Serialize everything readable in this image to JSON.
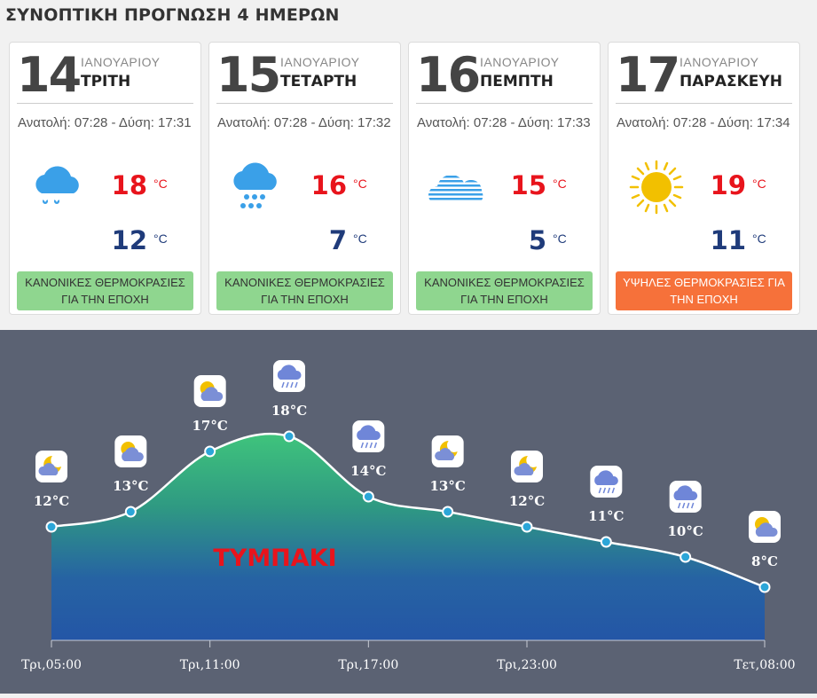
{
  "page_title": "ΣΥΝΟΠΤΙΚΗ ΠΡΟΓΝΩΣΗ 4 ΗΜΕΡΩΝ",
  "days": [
    {
      "day": "14",
      "month": "ΙΑΝΟΥΑΡΙΟΥ",
      "weekday": "ΤΡΙΤΗ",
      "sun": "Ανατολή: 07:28 - Δύση: 17:31",
      "icon": "rain-cloud-icon",
      "tmax": "18",
      "tmin": "12",
      "unit": "°C",
      "badge": "ΚΑΝΟΝΙΚΕΣ ΘΕΡΜΟΚΡΑΣΙΕΣ ΓΙΑ ΤΗΝ ΕΠΟΧΗ",
      "badge_type": "normal"
    },
    {
      "day": "15",
      "month": "ΙΑΝΟΥΑΡΙΟΥ",
      "weekday": "ΤΕΤΑΡΤΗ",
      "sun": "Ανατολή: 07:28 - Δύση: 17:32",
      "icon": "heavy-rain-cloud-icon",
      "tmax": "16",
      "tmin": "7",
      "unit": "°C",
      "badge": "ΚΑΝΟΝΙΚΕΣ ΘΕΡΜΟΚΡΑΣΙΕΣ ΓΙΑ ΤΗΝ ΕΠΟΧΗ",
      "badge_type": "normal"
    },
    {
      "day": "16",
      "month": "ΙΑΝΟΥΑΡΙΟΥ",
      "weekday": "ΠΕΜΠΤΗ",
      "sun": "Ανατολή: 07:28 - Δύση: 17:33",
      "icon": "fog-cloud-icon",
      "tmax": "15",
      "tmin": "5",
      "unit": "°C",
      "badge": "ΚΑΝΟΝΙΚΕΣ ΘΕΡΜΟΚΡΑΣΙΕΣ ΓΙΑ ΤΗΝ ΕΠΟΧΗ",
      "badge_type": "normal"
    },
    {
      "day": "17",
      "month": "ΙΑΝΟΥΑΡΙΟΥ",
      "weekday": "ΠΑΡΑΣΚΕΥΗ",
      "sun": "Ανατολή: 07:28 - Δύση: 17:34",
      "icon": "sun-icon",
      "tmax": "19",
      "tmin": "11",
      "unit": "°C",
      "badge": "ΥΨΗΛΕΣ ΘΕΡΜΟΚΡΑΣΙΕΣ ΓΙΑ ΤΗΝ ΕΠΟΧΗ",
      "badge_type": "high"
    }
  ],
  "colors": {
    "max_temp": "#e8141c",
    "min_temp": "#1f3b7a",
    "normal_badge": "#8fd68f",
    "high_badge": "#f6713a",
    "chart_bg": "#5b6273"
  },
  "chart_data": {
    "type": "area",
    "location_label": "ΤΥΜΠΑΚΙ",
    "ylim": [
      4,
      20
    ],
    "points": [
      {
        "t": 0,
        "value": 12,
        "label": "12°C",
        "icon": "moon-cloud-icon"
      },
      {
        "t": 1,
        "value": 13,
        "label": "13°C",
        "icon": "sun-cloud-icon"
      },
      {
        "t": 2,
        "value": 17,
        "label": "17°C",
        "icon": "sun-cloud-icon"
      },
      {
        "t": 3,
        "value": 18,
        "label": "18°C",
        "icon": "rain-cloud-icon"
      },
      {
        "t": 4,
        "value": 14,
        "label": "14°C",
        "icon": "rain-cloud-icon"
      },
      {
        "t": 5,
        "value": 13,
        "label": "13°C",
        "icon": "moon-cloud-icon"
      },
      {
        "t": 6,
        "value": 12,
        "label": "12°C",
        "icon": "moon-cloud-icon"
      },
      {
        "t": 7,
        "value": 11,
        "label": "11°C",
        "icon": "rain-cloud-icon"
      },
      {
        "t": 8,
        "value": 10,
        "label": "10°C",
        "icon": "rain-cloud-icon"
      },
      {
        "t": 9,
        "value": 8,
        "label": "8°C",
        "icon": "sun-cloud-icon"
      }
    ],
    "x_ticks": [
      {
        "t": 0,
        "label": "Τρι,05:00"
      },
      {
        "t": 2,
        "label": "Τρι,11:00"
      },
      {
        "t": 4,
        "label": "Τρι,17:00"
      },
      {
        "t": 6,
        "label": "Τρι,23:00"
      },
      {
        "t": 9,
        "label": "Τετ,08:00"
      }
    ]
  }
}
